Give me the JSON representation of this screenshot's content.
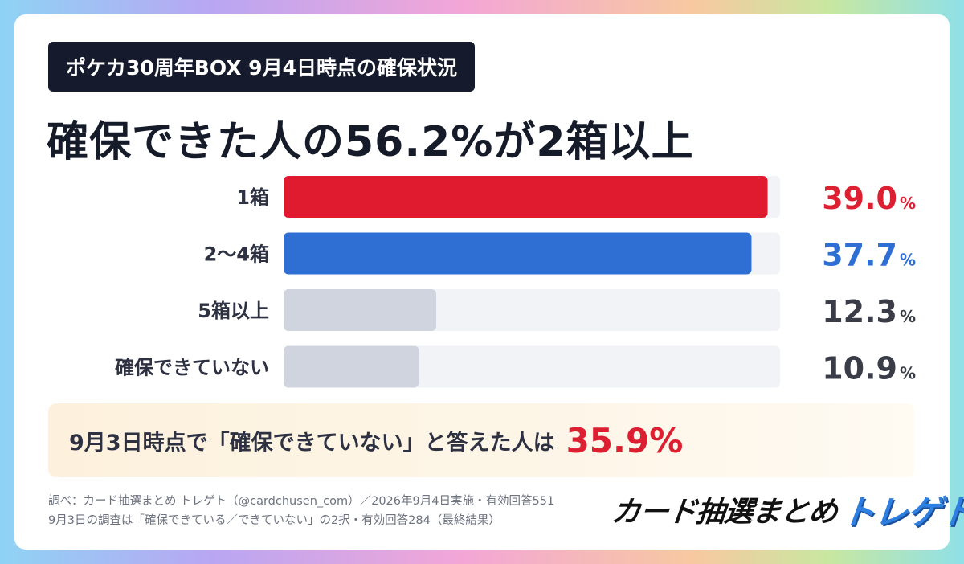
{
  "badge": "ポケカ30周年BOX 9月4日時点の確保状況",
  "headline": "確保できた人の56.2%が2箱以上",
  "chart_data": {
    "type": "bar",
    "orientation": "horizontal",
    "categories": [
      "1箱",
      "2〜4箱",
      "5箱以上",
      "確保できていない"
    ],
    "values": [
      39.0,
      37.7,
      12.3,
      10.9
    ],
    "value_labels": [
      "39.0",
      "37.7",
      "12.3",
      "10.9"
    ],
    "unit": "%",
    "xlim": [
      0,
      40
    ],
    "colors": [
      "#e01b2f",
      "#2f6fd4",
      "#cfd4de",
      "#cfd4de"
    ],
    "value_colors": [
      "#dd1f32",
      "#2f6fd4",
      "#3a3d48",
      "#3a3d48"
    ],
    "track_color": "#f1f3f7",
    "grid": false,
    "legend": "none"
  },
  "note": {
    "text": "9月3日時点で「確保できていない」と答えた人は",
    "value": "35.9%",
    "value_color": "#dd1f32"
  },
  "source": {
    "line1": "調べ：カード抽選まとめ トレゲト（@cardchusen_com）／2026年9月4日実施・有効回答551",
    "line2": "9月3日の調査は「確保できている／できていない」の2択・有効回答284（最終結果）"
  },
  "logo": {
    "part1": "カード抽選まとめ",
    "part2": "トレゲト"
  }
}
